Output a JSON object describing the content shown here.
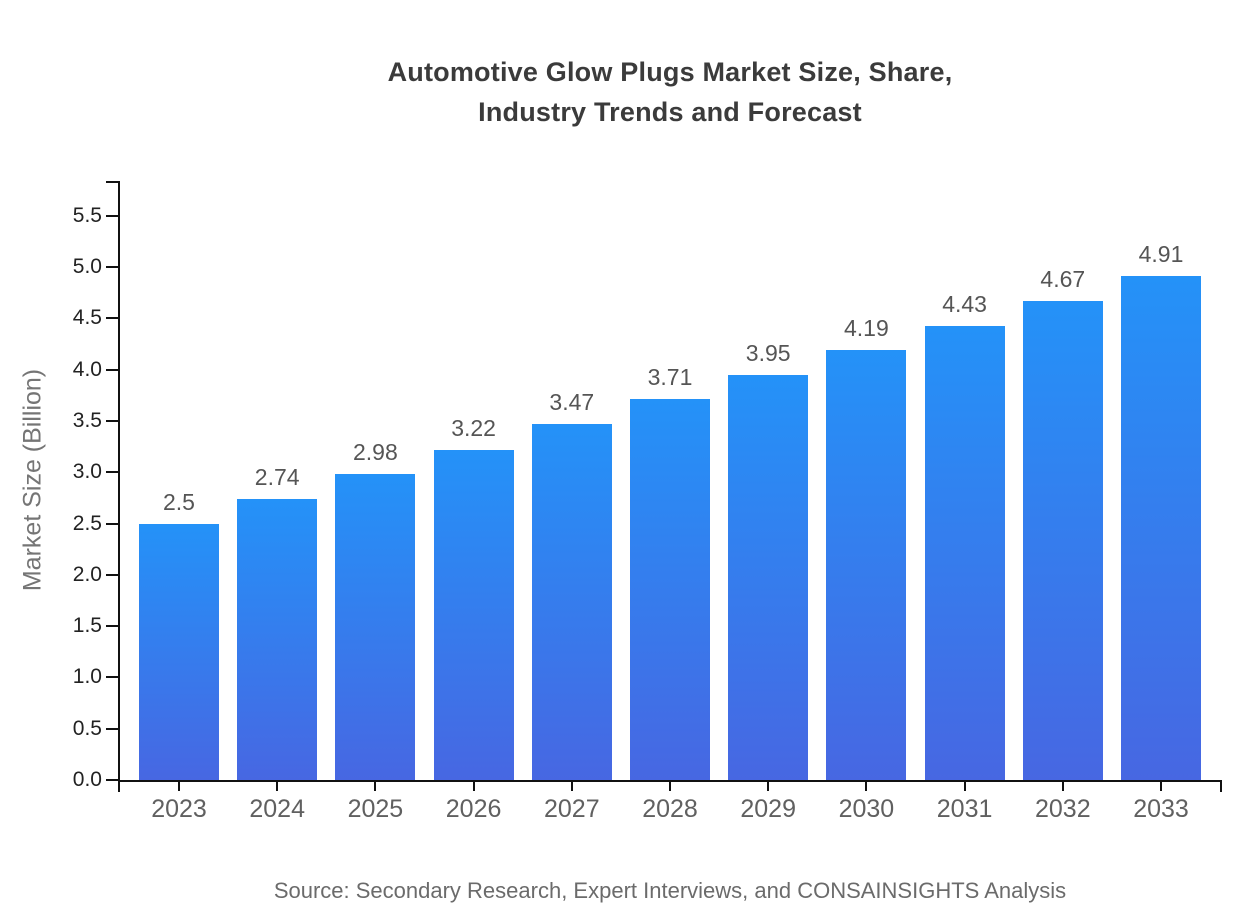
{
  "header": {
    "title_lines": [
      "Automotive Glow Plugs Market Size, Share,",
      "Industry Trends and Forecast"
    ]
  },
  "chart_data": {
    "type": "bar",
    "title": "Automotive Glow Plugs Market Size, Share, Industry Trends and Forecast",
    "categories": [
      "2023",
      "2024",
      "2025",
      "2026",
      "2027",
      "2028",
      "2029",
      "2030",
      "2031",
      "2032",
      "2033"
    ],
    "values": [
      2.5,
      2.74,
      2.98,
      3.22,
      3.47,
      3.71,
      3.95,
      4.19,
      4.43,
      4.67,
      4.91
    ],
    "xlabel": "",
    "ylabel": "Market Size (Billion)",
    "ylim": [
      0,
      5.84
    ],
    "yticks": {
      "start": 0,
      "end": 5.5,
      "step": 0.5,
      "decimals": 1
    },
    "grid": false,
    "legend": false,
    "value_labels": true,
    "bar_color_top": "#2492F8",
    "bar_color_bottom": "#4767E2"
  },
  "footer": {
    "source": "Source: Secondary Research, Expert Interviews, and CONSAINSIGHTS Analysis"
  },
  "colors": {
    "axis": "#111111",
    "title_text": "#3b3b3b",
    "y_tick_text": "#222222",
    "x_tick_text": "#606060",
    "value_label_text": "#555555",
    "axis_title_text": "#757575",
    "source_text": "#6b6b6b",
    "background": "#ffffff"
  }
}
